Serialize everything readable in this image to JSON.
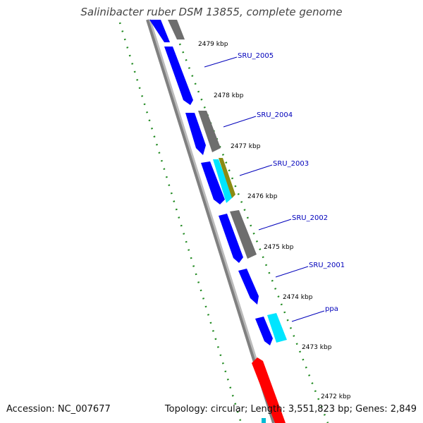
{
  "title": "Salinibacter ruber DSM 13855, complete genome",
  "footer": {
    "accession": "Accession: NC_007677",
    "topology": "Topology: circular; Length: 3,551,823 bp; Genes: 2,849"
  },
  "colors": {
    "background": "#ffffff",
    "backbone": "#808080",
    "cds_forward": "#0000ff",
    "cds_reverse_gray": "#6e6e6e",
    "cds_cyan": "#00e5ff",
    "cds_olive": "#8b8b12",
    "rrna_red": "#ff0000",
    "gc_dots": "#228b22",
    "gene_label": "#0000bb",
    "tick_text": "#000000"
  },
  "ticks": [
    {
      "label": "2479 kbp",
      "kbp": 2479
    },
    {
      "label": "2478 kbp",
      "kbp": 2478
    },
    {
      "label": "2477 kbp",
      "kbp": 2477
    },
    {
      "label": "2476 kbp",
      "kbp": 2476
    },
    {
      "label": "2475 kbp",
      "kbp": 2475
    },
    {
      "label": "2474 kbp",
      "kbp": 2474
    },
    {
      "label": "2473 kbp",
      "kbp": 2473
    },
    {
      "label": "2472 kbp",
      "kbp": 2472
    }
  ],
  "gene_labels": [
    "SRU_2005",
    "SRU_2004",
    "SRU_2003",
    "SRU_2002",
    "SRU_2001",
    "ppa"
  ]
}
